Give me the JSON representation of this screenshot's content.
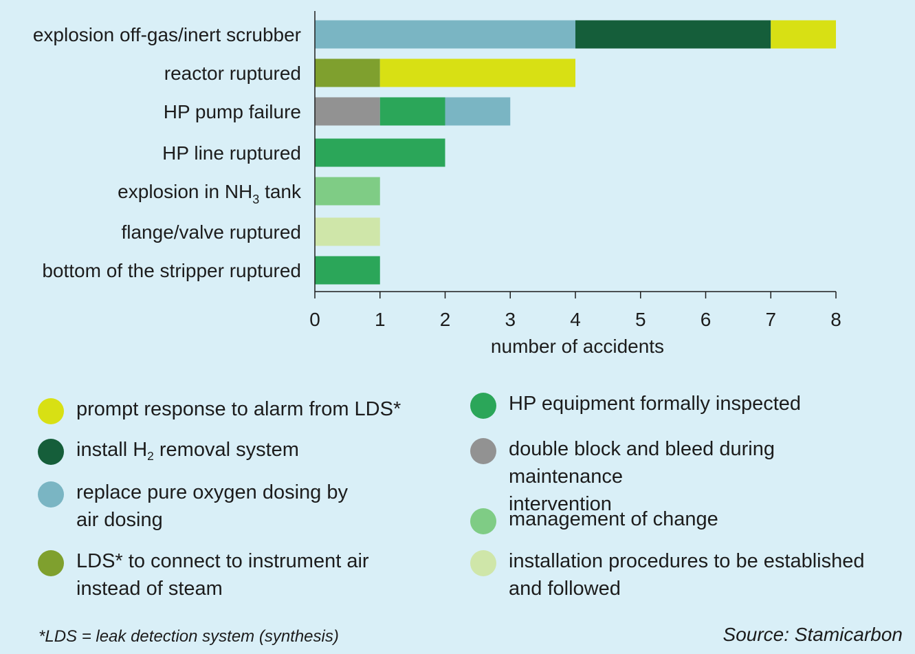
{
  "chart_data": {
    "type": "bar",
    "orientation": "horizontal",
    "stacked": true,
    "xlabel": "number of accidents",
    "xlim": [
      0,
      8
    ],
    "xticks": [
      0,
      1,
      2,
      3,
      4,
      5,
      6,
      7,
      8
    ],
    "categories": [
      {
        "label": "explosion off-gas/inert scrubber"
      },
      {
        "label": "reactor ruptured"
      },
      {
        "label": "HP pump failure"
      },
      {
        "label": "HP line ruptured"
      },
      {
        "label": "explosion in NH",
        "label_sub": "3",
        "label_after": " tank"
      },
      {
        "label": "flange/valve ruptured"
      },
      {
        "label": "bottom of the stripper ruptured"
      }
    ],
    "series": [
      {
        "name": "prompt response to alarm from LDS*",
        "color": "#d8e014",
        "values": [
          1,
          3,
          0,
          0,
          0,
          0,
          0
        ]
      },
      {
        "name": "install H",
        "name_sub": "2",
        "name_after": " removal system",
        "color": "#155e3a",
        "values": [
          3,
          0,
          0,
          0,
          0,
          0,
          0
        ]
      },
      {
        "name": "replace pure oxygen dosing by air dosing",
        "color": "#7ab5c3",
        "values": [
          4,
          0,
          1,
          0,
          0,
          0,
          0
        ]
      },
      {
        "name": "LDS* to connect to instrument air instead of steam",
        "color": "#7fa02e",
        "values": [
          0,
          1,
          0,
          0,
          0,
          0,
          0
        ]
      },
      {
        "name": "HP equipment formally inspected",
        "color": "#2ba659",
        "values": [
          0,
          0,
          1,
          2,
          0,
          0,
          1
        ]
      },
      {
        "name": "double block and bleed during maintenance intervention",
        "color": "#929292",
        "values": [
          0,
          0,
          1,
          0,
          0,
          0,
          0
        ]
      },
      {
        "name": "management of change",
        "color": "#7fcc85",
        "values": [
          0,
          0,
          0,
          0,
          1,
          0,
          0
        ]
      },
      {
        "name": "installation procedures to be established and followed",
        "color": "#cfe6a9",
        "values": [
          0,
          0,
          0,
          0,
          0,
          1,
          0
        ]
      }
    ],
    "stack_order": [
      [
        2,
        1,
        0
      ],
      [
        3,
        0
      ],
      [
        5,
        4,
        2
      ],
      [
        4
      ],
      [
        6
      ],
      [
        7
      ],
      [
        4
      ]
    ]
  },
  "legend": {
    "left": [
      {
        "text": "prompt response to alarm from LDS*",
        "color": "#d8e014"
      },
      {
        "text": "install H",
        "sub": "2",
        "after": " removal system",
        "color": "#155e3a"
      },
      {
        "text": "replace pure oxygen dosing by\nair dosing",
        "color": "#7ab5c3"
      },
      {
        "text": "LDS* to connect to instrument air\ninstead of steam",
        "color": "#7fa02e"
      }
    ],
    "right": [
      {
        "text": "HP equipment formally inspected",
        "color": "#2ba659"
      },
      {
        "text": "double block and bleed during maintenance\nintervention",
        "color": "#929292"
      },
      {
        "text": "management of change",
        "color": "#7fcc85"
      },
      {
        "text": "installation procedures to be established\nand followed",
        "color": "#cfe6a9"
      }
    ]
  },
  "footnote": "*LDS = leak detection system (synthesis)",
  "source": "Source: Stamicarbon"
}
